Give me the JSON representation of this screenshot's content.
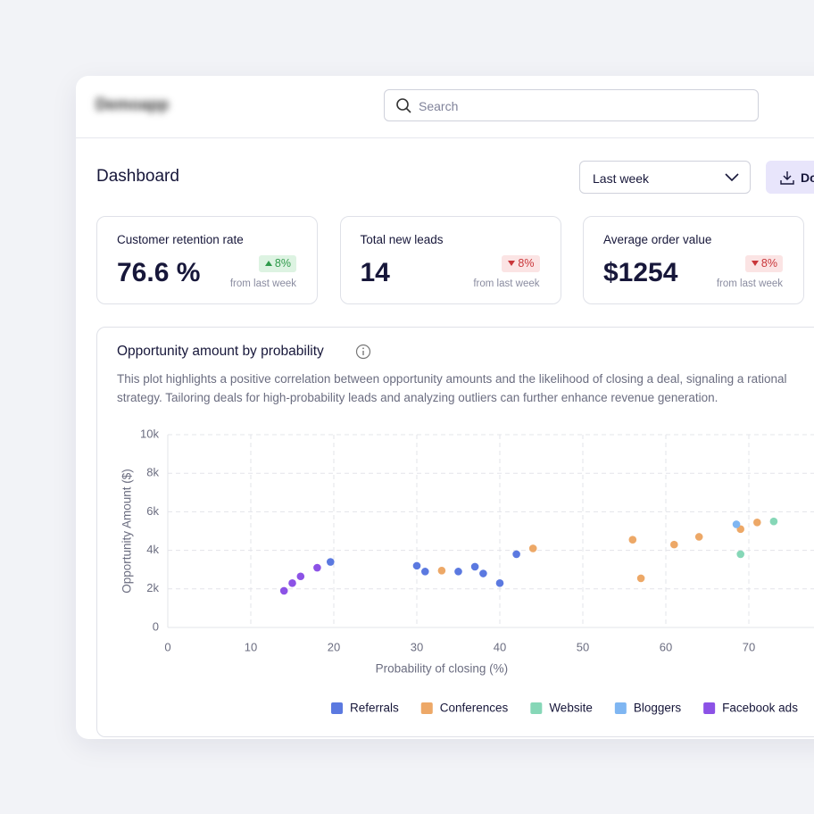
{
  "app_name": "Demoapp",
  "search": {
    "placeholder": "Search"
  },
  "page_title": "Dashboard",
  "period_select": "Last week",
  "download_button": "Download",
  "kpis": [
    {
      "label": "Customer retention rate",
      "value": "76.6 %",
      "change": "8%",
      "direction": "up",
      "note": "from last week"
    },
    {
      "label": "Total new leads",
      "value": "14",
      "change": "8%",
      "direction": "down",
      "note": "from last week"
    },
    {
      "label": "Average order value",
      "value": "$1254",
      "change": "8%",
      "direction": "down",
      "note": "from last week"
    }
  ],
  "chart_data": {
    "type": "scatter",
    "title": "Opportunity amount by probability",
    "description": "This plot highlights a positive correlation between opportunity amounts and the likelihood of closing a deal, signaling a rational strategy. Tailoring deals for high-probability leads and analyzing outliers can further enhance revenue generation.",
    "x_label": "Probability of closing (%)",
    "y_label": "Opportunity Amount ($)",
    "xlim": [
      0,
      80
    ],
    "xticks": [
      0,
      10,
      20,
      30,
      40,
      50,
      60,
      70
    ],
    "ylim": [
      0,
      10000
    ],
    "yticks": [
      0,
      {
        "value": 2000,
        "label": "2k"
      },
      {
        "value": 4000,
        "label": "4k"
      },
      {
        "value": 6000,
        "label": "6k"
      },
      {
        "value": 8000,
        "label": "8k"
      },
      {
        "value": 10000,
        "label": "10k"
      }
    ],
    "grid": true,
    "series": [
      {
        "name": "Referrals",
        "color": "#5b79e0",
        "x": [
          19.6,
          30,
          31,
          35,
          37,
          38,
          40,
          42
        ],
        "values": [
          3400,
          3200,
          2900,
          2900,
          3150,
          2800,
          2300,
          3800
        ]
      },
      {
        "name": "Conferences",
        "color": "#eda867",
        "x": [
          33,
          44,
          56,
          57,
          61,
          64,
          69,
          71
        ],
        "values": [
          2950,
          4100,
          4550,
          2550,
          4300,
          4700,
          5100,
          5450
        ]
      },
      {
        "name": "Website",
        "color": "#86d7b7",
        "x": [
          69,
          73
        ],
        "values": [
          3800,
          5500
        ]
      },
      {
        "name": "Bloggers",
        "color": "#7fb6f2",
        "x": [
          68.5
        ],
        "values": [
          5350
        ]
      },
      {
        "name": "Facebook ads",
        "color": "#8c52e6",
        "x": [
          14,
          15,
          16,
          18
        ],
        "values": [
          1900,
          2300,
          2650,
          3100
        ]
      }
    ]
  }
}
